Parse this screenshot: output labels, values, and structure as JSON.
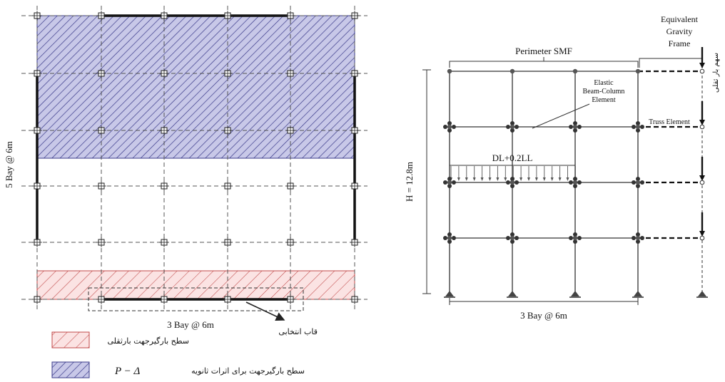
{
  "plan": {
    "x_dimension": "3 Bay @ 6m",
    "y_dimension": "5 Bay @ 6m",
    "selected_frame_label": "قاب انتخابی"
  },
  "legend": {
    "gravity_area_label": "سطح بارگیرجهت بارثقلی",
    "pdelta_area_label_text": "سطح بارگیرجهت برای اثرات ثانویه",
    "pdelta_symbol": "P − Δ"
  },
  "elevation": {
    "perimeter_label": "Perimeter SMF",
    "equivalent_frame_label": [
      "Equivalent",
      "Gravity",
      "Frame"
    ],
    "beam_element_label": [
      "Elastic",
      "Beam-Column",
      "Element"
    ],
    "truss_element_label": "Truss Element",
    "load_label": "DL+0.2LL",
    "height_label": "H = 12.8m",
    "width_label": "3 Bay @ 6m",
    "gravity_load_vertical_label": "سهم بار ثقلی"
  },
  "colors": {
    "pdelta_fill": "#c8c8e8",
    "pdelta_hatch": "#3a3a8a",
    "gravity_fill": "#fbe3e3",
    "gravity_hatch": "#c04848",
    "line": "#222222"
  }
}
